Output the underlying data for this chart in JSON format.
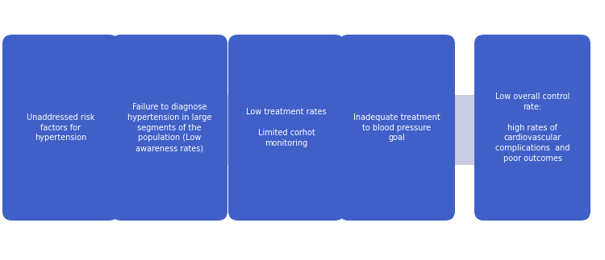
{
  "background_color": "#ffffff",
  "arrow_color": "#c8cde3",
  "box_color": "#4060c8",
  "box_text_color": "#ffffff",
  "box_texts": [
    "Unaddressed risk\nfactors for\nhypertension",
    "Failure to diagnose\nhypertension in large\nsegments of the\npopulation (Low\nawareness rates)",
    "Low treatment rates\n\nLimited corhot\nmonitoring",
    "Inadequate treatment\nto blood pressure\ngoal",
    "Low overall control\nrate:\n\nhigh rates of\ncardiovascular\ncomplications  and\npoor outcomes"
  ],
  "figsize": [
    7.5,
    3.23
  ],
  "dpi": 100
}
